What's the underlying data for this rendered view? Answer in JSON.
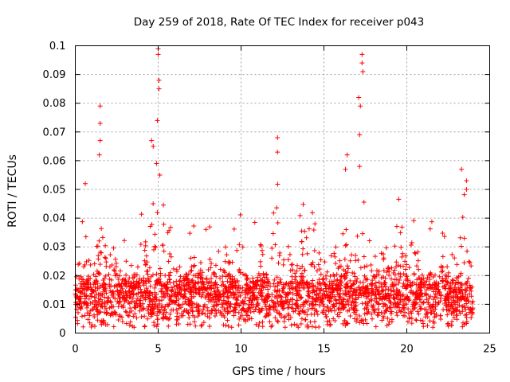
{
  "chart_data": {
    "type": "scatter",
    "title": "Day 259 of 2018, Rate Of TEC Index for receiver p043",
    "xlabel": "GPS time / hours",
    "ylabel": "ROTI / TECUs",
    "xlim": [
      0,
      25
    ],
    "ylim": [
      0,
      0.1
    ],
    "grid": true,
    "marker": "+",
    "color": "#ff0000",
    "x_ticks": [
      "0",
      "5",
      "10",
      "15",
      "20",
      "25"
    ],
    "y_ticks": [
      "0",
      "0.01",
      "0.02",
      "0.03",
      "0.04",
      "0.05",
      "0.06",
      "0.07",
      "0.08",
      "0.09",
      "0.1"
    ],
    "peaks": [
      {
        "x": 0.6,
        "y": 0.052
      },
      {
        "x": 1.5,
        "y": 0.079
      },
      {
        "x": 1.5,
        "y": 0.073
      },
      {
        "x": 1.5,
        "y": 0.067
      },
      {
        "x": 1.45,
        "y": 0.062
      },
      {
        "x": 4.6,
        "y": 0.067
      },
      {
        "x": 4.7,
        "y": 0.065
      },
      {
        "x": 4.9,
        "y": 0.059
      },
      {
        "x": 5.0,
        "y": 0.099
      },
      {
        "x": 5.0,
        "y": 0.097
      },
      {
        "x": 5.05,
        "y": 0.088
      },
      {
        "x": 5.05,
        "y": 0.085
      },
      {
        "x": 4.95,
        "y": 0.074
      },
      {
        "x": 5.1,
        "y": 0.055
      },
      {
        "x": 12.2,
        "y": 0.068
      },
      {
        "x": 12.2,
        "y": 0.063
      },
      {
        "x": 16.4,
        "y": 0.062
      },
      {
        "x": 16.3,
        "y": 0.057
      },
      {
        "x": 17.3,
        "y": 0.097
      },
      {
        "x": 17.3,
        "y": 0.094
      },
      {
        "x": 17.35,
        "y": 0.091
      },
      {
        "x": 17.1,
        "y": 0.082
      },
      {
        "x": 17.2,
        "y": 0.079
      },
      {
        "x": 17.15,
        "y": 0.069
      },
      {
        "x": 17.15,
        "y": 0.058
      },
      {
        "x": 23.3,
        "y": 0.057
      },
      {
        "x": 23.6,
        "y": 0.053
      },
      {
        "x": 23.6,
        "y": 0.05
      }
    ],
    "bumps": [
      {
        "x": 0.6,
        "a": 0.02
      },
      {
        "x": 1.5,
        "a": 0.032
      },
      {
        "x": 2.3,
        "a": 0.015
      },
      {
        "x": 3.0,
        "a": 0.012
      },
      {
        "x": 4.0,
        "a": 0.03
      },
      {
        "x": 4.8,
        "a": 0.035
      },
      {
        "x": 5.5,
        "a": 0.03
      },
      {
        "x": 6.0,
        "a": 0.015
      },
      {
        "x": 7.2,
        "a": 0.027
      },
      {
        "x": 8.0,
        "a": 0.018
      },
      {
        "x": 9.0,
        "a": 0.02
      },
      {
        "x": 9.8,
        "a": 0.03
      },
      {
        "x": 11.0,
        "a": 0.022
      },
      {
        "x": 12.2,
        "a": 0.032
      },
      {
        "x": 12.8,
        "a": 0.02
      },
      {
        "x": 13.8,
        "a": 0.03
      },
      {
        "x": 14.5,
        "a": 0.028
      },
      {
        "x": 15.8,
        "a": 0.02
      },
      {
        "x": 16.4,
        "a": 0.035
      },
      {
        "x": 17.3,
        "a": 0.036
      },
      {
        "x": 18.0,
        "a": 0.022
      },
      {
        "x": 18.7,
        "a": 0.02
      },
      {
        "x": 19.5,
        "a": 0.024
      },
      {
        "x": 20.3,
        "a": 0.02
      },
      {
        "x": 21.5,
        "a": 0.024
      },
      {
        "x": 22.3,
        "a": 0.02
      },
      {
        "x": 23.4,
        "a": 0.035
      }
    ],
    "density": {
      "x_start": 0.0,
      "x_end": 24.0,
      "points": 2600,
      "floor": 0.002,
      "base_low": 0.005,
      "base_high": 0.016
    }
  }
}
